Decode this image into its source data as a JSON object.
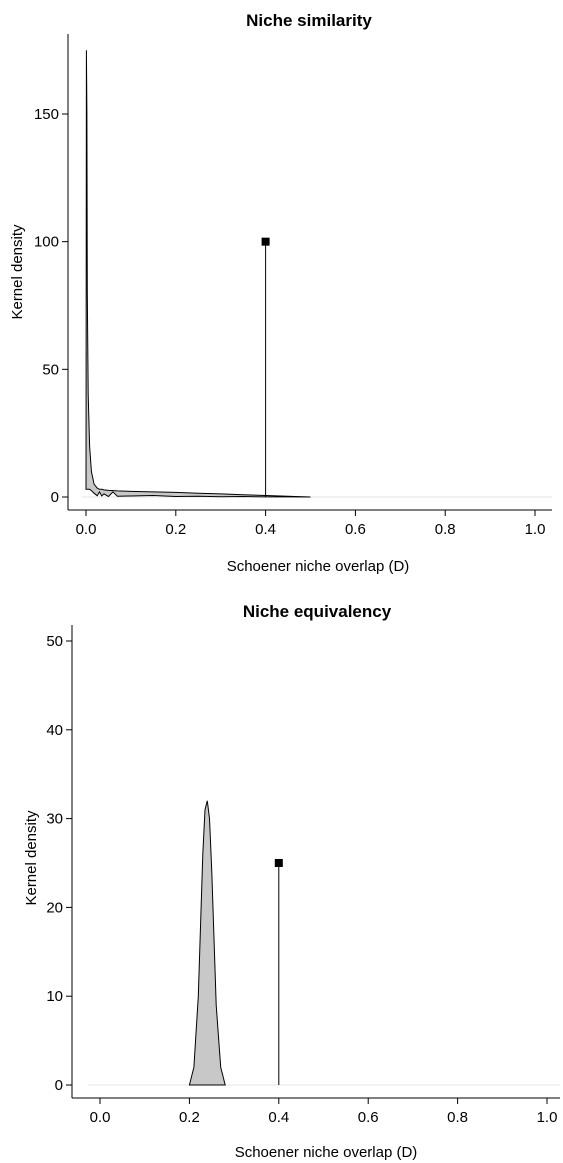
{
  "chart_data": [
    {
      "type": "area",
      "title": "Niche similarity",
      "xlabel": "Schoener niche overlap (D)",
      "ylabel": "Kernel density",
      "xlim": [
        -0.03,
        1.03
      ],
      "ylim": [
        -5,
        178
      ],
      "xticks": [
        0.0,
        0.2,
        0.4,
        0.6,
        0.8,
        1.0
      ],
      "xtick_labels": [
        "0.0",
        "0.2",
        "0.4",
        "0.6",
        "0.8",
        "1.0"
      ],
      "yticks": [
        0,
        50,
        100,
        150
      ],
      "ytick_labels": [
        "0",
        "50",
        "100",
        "150"
      ],
      "grid": false,
      "series": [
        {
          "kind": "density",
          "fill": "#c8c8c8",
          "x": [
            0.0,
            0.001,
            0.002,
            0.003,
            0.005,
            0.008,
            0.012,
            0.018,
            0.025,
            0.03,
            0.035,
            0.04,
            0.05,
            0.06,
            0.07,
            0.1,
            0.15,
            0.2,
            0.25,
            0.3,
            0.35,
            0.4,
            0.45,
            0.5
          ],
          "upper": [
            3,
            175,
            150,
            80,
            40,
            20,
            10,
            5,
            3.5,
            3,
            3,
            2.8,
            2.6,
            2.5,
            2.4,
            2.2,
            2.0,
            1.8,
            1.5,
            1.2,
            0.9,
            0.6,
            0.3,
            0
          ],
          "lower": [
            3,
            3,
            3,
            3,
            3,
            3,
            2.5,
            1.5,
            0.5,
            2,
            0.4,
            1.2,
            0.2,
            2,
            0.3,
            0.4,
            0.6,
            0.2,
            0.3,
            0.1,
            0.2,
            0.05,
            0.02,
            0
          ]
        }
      ],
      "observed": {
        "x": 0.4,
        "y": 100,
        "marker": "square"
      }
    },
    {
      "type": "area",
      "title": "Niche equivalency",
      "xlabel": "Schoener niche overlap (D)",
      "ylabel": "Kernel density",
      "xlim": [
        -0.03,
        1.03
      ],
      "ylim": [
        -1.5,
        52
      ],
      "xticks": [
        0.0,
        0.2,
        0.4,
        0.6,
        0.8,
        1.0
      ],
      "xtick_labels": [
        "0.0",
        "0.2",
        "0.4",
        "0.6",
        "0.8",
        "1.0"
      ],
      "yticks": [
        0,
        10,
        20,
        30,
        40,
        50
      ],
      "ytick_labels": [
        "0",
        "10",
        "20",
        "30",
        "40",
        "50"
      ],
      "grid": false,
      "series": [
        {
          "kind": "density",
          "fill": "#c8c8c8",
          "x": [
            0.2,
            0.21,
            0.22,
            0.23,
            0.235,
            0.24,
            0.245,
            0.25,
            0.26,
            0.27,
            0.28
          ],
          "upper": [
            0,
            2,
            10,
            26,
            31,
            32,
            30,
            24,
            9,
            2,
            0
          ]
        }
      ],
      "observed": {
        "x": 0.4,
        "y": 25,
        "marker": "square"
      }
    }
  ]
}
